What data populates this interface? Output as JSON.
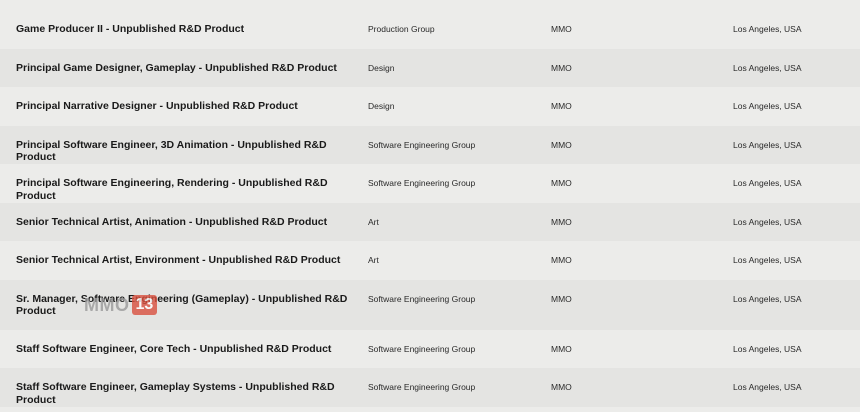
{
  "jobs": [
    {
      "title": "Game Producer II - Unpublished R&D Product",
      "team": "Production Group",
      "unit": "MMO",
      "location": "Los Angeles, USA"
    },
    {
      "title": "Principal Game Designer, Gameplay - Unpublished R&D Product",
      "team": "Design",
      "unit": "MMO",
      "location": "Los Angeles, USA"
    },
    {
      "title": "Principal Narrative Designer - Unpublished R&D Product",
      "team": "Design",
      "unit": "MMO",
      "location": "Los Angeles, USA"
    },
    {
      "title": "Principal Software Engineer, 3D Animation - Unpublished R&D Product",
      "team": "Software Engineering Group",
      "unit": "MMO",
      "location": "Los Angeles, USA"
    },
    {
      "title": "Principal Software Engineering, Rendering - Unpublished R&D Product",
      "team": "Software Engineering Group",
      "unit": "MMO",
      "location": "Los Angeles, USA"
    },
    {
      "title": "Senior Technical Artist, Animation - Unpublished R&D Product",
      "team": "Art",
      "unit": "MMO",
      "location": "Los Angeles, USA"
    },
    {
      "title": "Senior Technical Artist, Environment - Unpublished R&D Product",
      "team": "Art",
      "unit": "MMO",
      "location": "Los Angeles, USA"
    },
    {
      "title": "Sr. Manager, Software Engineering (Gameplay) - Unpublished R&D Product",
      "team": "Software Engineering Group",
      "unit": "MMO",
      "location": "Los Angeles, USA"
    },
    {
      "title": "Staff Software Engineer, Core Tech - Unpublished R&D Product",
      "team": "Software Engineering Group",
      "unit": "MMO",
      "location": "Los Angeles, USA"
    },
    {
      "title": "Staff Software Engineer, Gameplay Systems - Unpublished R&D Product",
      "team": "Software Engineering Group",
      "unit": "MMO",
      "location": "Los Angeles, USA"
    }
  ],
  "watermark": {
    "text": "MMO",
    "badge": "13"
  }
}
